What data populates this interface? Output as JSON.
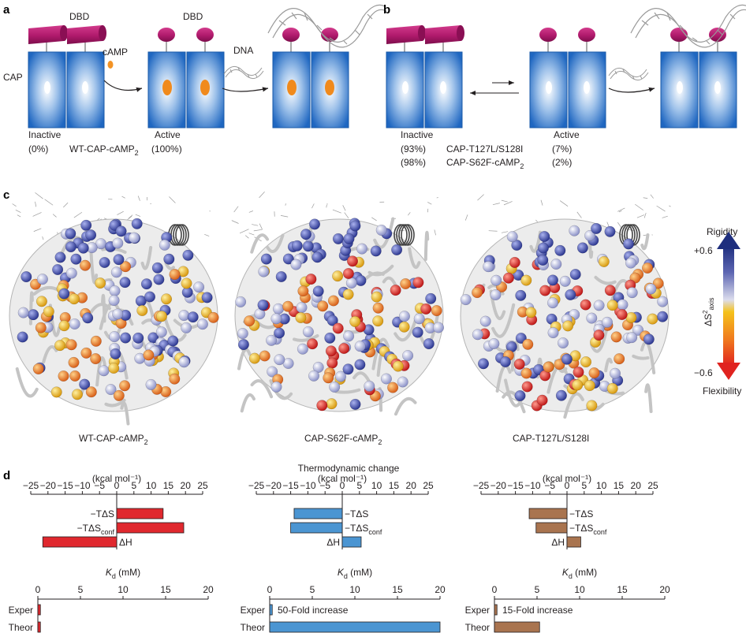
{
  "panel_labels": {
    "a": "a",
    "b": "b",
    "c": "c",
    "d": "d"
  },
  "panel_a": {
    "dbd_label_1": "DBD",
    "dbd_label_2": "DBD",
    "cap_label": "CAP",
    "camp_label": "cAMP",
    "dna_label": "DNA",
    "inactive_label": "Inactive",
    "inactive_pct": "(0%)",
    "complex_label_main": "WT-CAP-cAMP",
    "complex_label_sub": "2",
    "active_label": "Active",
    "active_pct": "(100%)"
  },
  "panel_b": {
    "inactive_label": "Inactive",
    "inactive_pct_1": "(93%)",
    "inactive_pct_2": "(98%)",
    "mutant_1": "CAP-T127L/S128I",
    "mutant_2_main": "CAP-S62F-cAMP",
    "mutant_2_sub": "2",
    "active_label": "Active",
    "active_pct_1": "(7%)",
    "active_pct_2": "(2%)"
  },
  "panel_c": {
    "structures": [
      {
        "label_main": "WT-CAP-cAMP",
        "label_sub": "2",
        "color": "#e0282e"
      },
      {
        "label_main": "CAP-S62F-cAMP",
        "label_sub": "2",
        "color": "#3a8fd0"
      },
      {
        "label_main": "CAP-T127L/S128I",
        "label_sub": "",
        "color": "#a9744f"
      }
    ],
    "scale": {
      "top_label": "Rigidity",
      "top_value": "+0.6",
      "bottom_value": "−0.6",
      "bottom_label": "Flexibility",
      "axis_label": "ΔS²axis",
      "colors": [
        "#1e2e7e",
        "#7f86c4",
        "#d9daee",
        "#f5c21b",
        "#f07a1e",
        "#e0231f"
      ]
    }
  },
  "panel_d": {
    "title": "Thermodynamic change",
    "unit": "(kcal mol⁻¹)",
    "energy_ticks": [
      "−25",
      "−20",
      "−15",
      "−10",
      "−5",
      "0",
      "5",
      "10",
      "15",
      "20",
      "25"
    ],
    "energy_terms": [
      "−TΔS",
      "−TΔSconf",
      "ΔH"
    ],
    "kd_label": "Kd (mM)",
    "kd_ticks": [
      "0",
      "5",
      "10",
      "15",
      "20"
    ],
    "kd_rows": [
      "Exper",
      "Theor"
    ],
    "fold_notes": [
      "",
      "50-Fold increase",
      "15-Fold increase"
    ]
  },
  "chart_data": [
    {
      "type": "bar",
      "orientation": "horizontal",
      "color": "#e0282e",
      "categories": [
        "−TΔS",
        "−TΔSconf",
        "ΔH"
      ],
      "values": [
        13.5,
        19.5,
        -21.5
      ],
      "xlim": [
        -25,
        25
      ]
    },
    {
      "type": "bar",
      "orientation": "horizontal",
      "color": "#4b95d2",
      "categories": [
        "−TΔS",
        "−TΔSconf",
        "ΔH"
      ],
      "values": [
        -14,
        -15,
        5.5
      ],
      "xlim": [
        -25,
        25
      ]
    },
    {
      "type": "bar",
      "orientation": "horizontal",
      "color": "#a9744f",
      "categories": [
        "−TΔS",
        "−TΔSconf",
        "ΔH"
      ],
      "values": [
        -11,
        -9,
        4
      ],
      "xlim": [
        -25,
        25
      ]
    },
    {
      "type": "bar",
      "orientation": "horizontal",
      "color": "#e0282e",
      "categories": [
        "Exper",
        "Theor"
      ],
      "values": [
        0.3,
        0.3
      ],
      "xlim": [
        0,
        20
      ]
    },
    {
      "type": "bar",
      "orientation": "horizontal",
      "color": "#4b95d2",
      "categories": [
        "Exper",
        "Theor"
      ],
      "values": [
        0.3,
        20
      ],
      "xlim": [
        0,
        20
      ]
    },
    {
      "type": "bar",
      "orientation": "horizontal",
      "color": "#a9744f",
      "categories": [
        "Exper",
        "Theor"
      ],
      "values": [
        0.3,
        5.3
      ],
      "xlim": [
        0,
        20
      ]
    }
  ]
}
